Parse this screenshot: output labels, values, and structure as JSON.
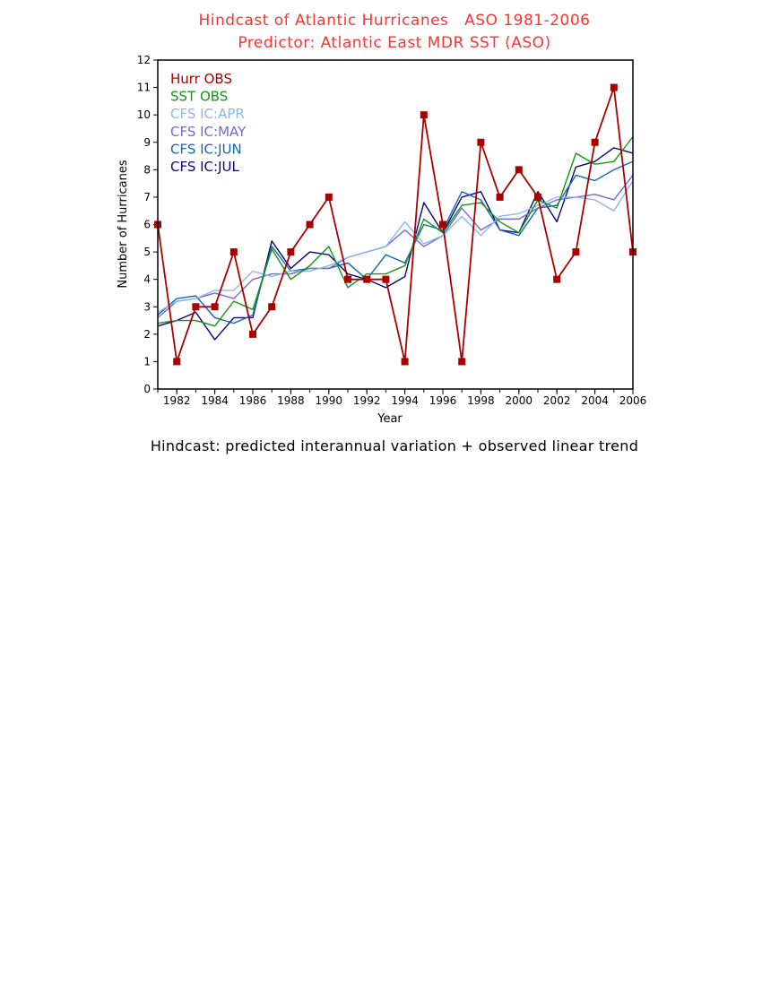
{
  "chart_data": {
    "type": "line",
    "title": "Hindcast of Atlantic Hurricanes   ASO 1981-2006",
    "subtitle": "Predictor: Atlantic East MDR SST (ASO)",
    "xlabel": "Year",
    "ylabel": "Number of Hurricanes",
    "caption": "Hindcast: predicted interannual variation + observed linear trend",
    "xlim": [
      1981,
      2006
    ],
    "ylim": [
      0,
      12
    ],
    "x_ticks": [
      1982,
      1984,
      1986,
      1988,
      1990,
      1992,
      1994,
      1996,
      1998,
      2000,
      2002,
      2004,
      2006
    ],
    "y_ticks": [
      0,
      1,
      2,
      3,
      4,
      5,
      6,
      7,
      8,
      9,
      10,
      11,
      12
    ],
    "grid": false,
    "legend_position": "top-left",
    "x": [
      1981,
      1982,
      1983,
      1984,
      1985,
      1986,
      1987,
      1988,
      1989,
      1990,
      1991,
      1992,
      1993,
      1994,
      1995,
      1996,
      1997,
      1998,
      1999,
      2000,
      2001,
      2002,
      2003,
      2004,
      2005,
      2006
    ],
    "series": [
      {
        "name": "Hurr OBS",
        "color": "#aa0000",
        "markers": true,
        "values": [
          6,
          1,
          3,
          3,
          5,
          2,
          3,
          5,
          6,
          7,
          4,
          4,
          4,
          1,
          10,
          6,
          1,
          9,
          7,
          8,
          7,
          4,
          5,
          9,
          11,
          5
        ]
      },
      {
        "name": "SST OBS",
        "color": "#109910",
        "markers": false,
        "values": [
          2.4,
          2.5,
          2.5,
          2.3,
          3.2,
          2.9,
          5.1,
          4.0,
          4.5,
          5.2,
          3.7,
          4.2,
          4.2,
          4.5,
          6.2,
          5.7,
          6.7,
          6.8,
          6.1,
          5.7,
          6.9,
          6.6,
          8.6,
          8.2,
          8.3,
          9.2
        ]
      },
      {
        "name": "CFS IC:APR",
        "color": "#88b8ee",
        "markers": false,
        "values": [
          2.8,
          3.2,
          3.3,
          3.6,
          3.6,
          4.3,
          4.1,
          4.3,
          4.3,
          4.5,
          4.8,
          5.0,
          5.2,
          6.1,
          5.3,
          5.6,
          6.3,
          5.6,
          6.3,
          6.4,
          6.7,
          7.0,
          7.0,
          6.9,
          6.5,
          7.6
        ]
      },
      {
        "name": "CFS IC:MAY",
        "color": "#7766dd",
        "markers": false,
        "values": [
          2.6,
          3.2,
          3.3,
          3.5,
          3.3,
          4.0,
          4.2,
          4.2,
          4.4,
          4.4,
          4.8,
          5.0,
          5.2,
          5.8,
          5.2,
          5.6,
          6.6,
          5.8,
          6.2,
          6.2,
          6.6,
          6.9,
          7.0,
          7.1,
          6.9,
          7.8
        ]
      },
      {
        "name": "CFS IC:JUN",
        "color": "#1166bb",
        "markers": false,
        "values": [
          2.7,
          3.3,
          3.4,
          2.6,
          2.4,
          2.7,
          5.2,
          4.3,
          4.4,
          4.4,
          4.6,
          4.0,
          4.9,
          4.6,
          6.0,
          5.8,
          7.2,
          6.9,
          5.8,
          5.6,
          6.6,
          6.7,
          7.8,
          7.6,
          8.0,
          8.3
        ]
      },
      {
        "name": "CFS IC:JUL",
        "color": "#100080",
        "markers": false,
        "values": [
          2.3,
          2.5,
          2.8,
          1.8,
          2.6,
          2.6,
          5.4,
          4.4,
          5.0,
          4.9,
          4.2,
          4.0,
          3.7,
          4.1,
          6.8,
          5.7,
          7.0,
          7.2,
          5.8,
          5.7,
          7.2,
          6.1,
          8.1,
          8.3,
          8.8,
          8.6
        ]
      }
    ]
  }
}
